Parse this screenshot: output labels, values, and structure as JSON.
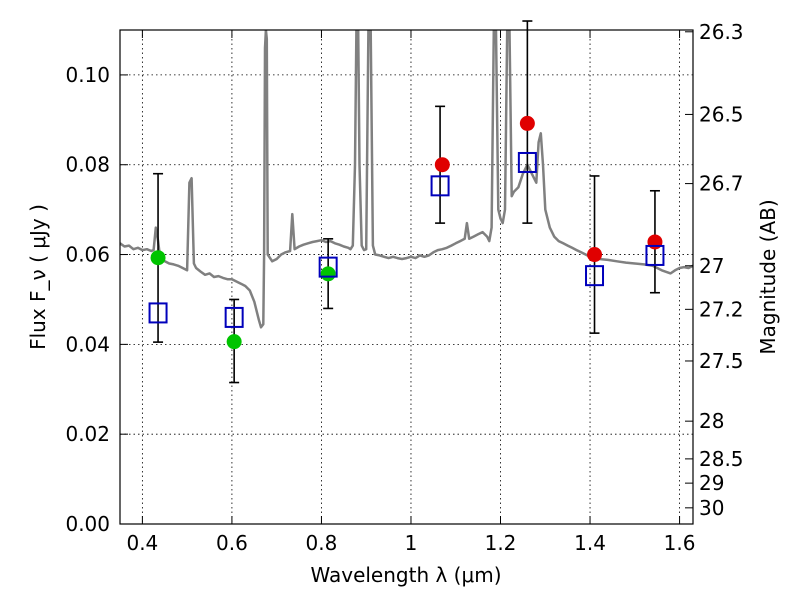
{
  "chart_data": {
    "type": "scatter",
    "title": "",
    "xlabel": "Wavelength λ (μm)",
    "ylabel": "Flux F_ν ( μJy )",
    "ylabel_right": "Magnitude (AB)",
    "xlim": [
      0.35,
      1.63
    ],
    "ylim": [
      0.0,
      0.11
    ],
    "grid": true,
    "x_ticks": [
      0.4,
      0.6,
      0.8,
      1.0,
      1.2,
      1.4,
      1.6
    ],
    "x_tick_labels": [
      "0.4",
      "0.6",
      "0.8",
      "1",
      "1.2",
      "1.4",
      "1.6"
    ],
    "y_ticks": [
      0.0,
      0.02,
      0.04,
      0.06,
      0.08,
      0.1
    ],
    "y_tick_labels": [
      "0.00",
      "0.02",
      "0.04",
      "0.06",
      "0.08",
      "0.10"
    ],
    "right_ticks": [
      {
        "label": "26.3",
        "flux": 0.1096
      },
      {
        "label": "26.5",
        "flux": 0.0912
      },
      {
        "label": "26.7",
        "flux": 0.0758
      },
      {
        "label": "27",
        "flux": 0.0575
      },
      {
        "label": "27.2",
        "flux": 0.0478
      },
      {
        "label": "27.5",
        "flux": 0.0363
      },
      {
        "label": "28",
        "flux": 0.0229
      },
      {
        "label": "28.5",
        "flux": 0.0145
      },
      {
        "label": "29",
        "flux": 0.0091
      },
      {
        "label": "30",
        "flux": 0.0036
      }
    ],
    "series": [
      {
        "name": "model spectrum",
        "kind": "line",
        "color": "#808080",
        "points": [
          [
            0.35,
            0.0625
          ],
          [
            0.36,
            0.0618
          ],
          [
            0.37,
            0.062
          ],
          [
            0.38,
            0.0612
          ],
          [
            0.39,
            0.0615
          ],
          [
            0.4,
            0.061
          ],
          [
            0.41,
            0.0612
          ],
          [
            0.42,
            0.0608
          ],
          [
            0.425,
            0.061
          ],
          [
            0.43,
            0.066
          ],
          [
            0.435,
            0.063
          ],
          [
            0.44,
            0.059
          ],
          [
            0.45,
            0.0585
          ],
          [
            0.46,
            0.058
          ],
          [
            0.47,
            0.0578
          ],
          [
            0.48,
            0.0575
          ],
          [
            0.49,
            0.057
          ],
          [
            0.5,
            0.0565
          ],
          [
            0.505,
            0.076
          ],
          [
            0.51,
            0.077
          ],
          [
            0.515,
            0.058
          ],
          [
            0.52,
            0.057
          ],
          [
            0.53,
            0.0562
          ],
          [
            0.54,
            0.0555
          ],
          [
            0.55,
            0.0558
          ],
          [
            0.56,
            0.055
          ],
          [
            0.57,
            0.0552
          ],
          [
            0.58,
            0.0548
          ],
          [
            0.59,
            0.0545
          ],
          [
            0.6,
            0.0545
          ],
          [
            0.61,
            0.054
          ],
          [
            0.62,
            0.0535
          ],
          [
            0.63,
            0.053
          ],
          [
            0.64,
            0.052
          ],
          [
            0.65,
            0.0495
          ],
          [
            0.66,
            0.0455
          ],
          [
            0.665,
            0.0438
          ],
          [
            0.67,
            0.0445
          ],
          [
            0.672,
            0.06
          ],
          [
            0.674,
            0.106
          ],
          [
            0.676,
            0.11
          ],
          [
            0.678,
            0.108
          ],
          [
            0.68,
            0.06
          ],
          [
            0.69,
            0.0585
          ],
          [
            0.7,
            0.059
          ],
          [
            0.71,
            0.06
          ],
          [
            0.72,
            0.0605
          ],
          [
            0.73,
            0.0608
          ],
          [
            0.735,
            0.069
          ],
          [
            0.74,
            0.0612
          ],
          [
            0.75,
            0.0618
          ],
          [
            0.76,
            0.0622
          ],
          [
            0.77,
            0.0625
          ],
          [
            0.78,
            0.0628
          ],
          [
            0.79,
            0.063
          ],
          [
            0.8,
            0.0632
          ],
          [
            0.81,
            0.0628
          ],
          [
            0.82,
            0.063
          ],
          [
            0.83,
            0.0625
          ],
          [
            0.84,
            0.0622
          ],
          [
            0.85,
            0.0618
          ],
          [
            0.86,
            0.0615
          ],
          [
            0.865,
            0.0612
          ],
          [
            0.87,
            0.062
          ],
          [
            0.875,
            0.08
          ],
          [
            0.878,
            0.11
          ],
          [
            0.882,
            0.11
          ],
          [
            0.885,
            0.08
          ],
          [
            0.89,
            0.062
          ],
          [
            0.895,
            0.061
          ],
          [
            0.9,
            0.0612
          ],
          [
            0.905,
            0.11
          ],
          [
            0.91,
            0.11
          ],
          [
            0.915,
            0.062
          ],
          [
            0.92,
            0.06
          ],
          [
            0.93,
            0.0598
          ],
          [
            0.94,
            0.0595
          ],
          [
            0.95,
            0.0592
          ],
          [
            0.96,
            0.0595
          ],
          [
            0.97,
            0.0592
          ],
          [
            0.98,
            0.059
          ],
          [
            0.99,
            0.0592
          ],
          [
            1.0,
            0.0595
          ],
          [
            1.01,
            0.0592
          ],
          [
            1.02,
            0.0598
          ],
          [
            1.03,
            0.0595
          ],
          [
            1.04,
            0.0598
          ],
          [
            1.05,
            0.0605
          ],
          [
            1.06,
            0.061
          ],
          [
            1.07,
            0.0612
          ],
          [
            1.08,
            0.0615
          ],
          [
            1.09,
            0.062
          ],
          [
            1.1,
            0.0625
          ],
          [
            1.11,
            0.063
          ],
          [
            1.12,
            0.0635
          ],
          [
            1.125,
            0.067
          ],
          [
            1.13,
            0.0635
          ],
          [
            1.14,
            0.064
          ],
          [
            1.15,
            0.0645
          ],
          [
            1.16,
            0.065
          ],
          [
            1.17,
            0.064
          ],
          [
            1.175,
            0.063
          ],
          [
            1.18,
            0.066
          ],
          [
            1.185,
            0.11
          ],
          [
            1.19,
            0.11
          ],
          [
            1.195,
            0.07
          ],
          [
            1.2,
            0.068
          ],
          [
            1.205,
            0.067
          ],
          [
            1.21,
            0.07
          ],
          [
            1.215,
            0.11
          ],
          [
            1.22,
            0.11
          ],
          [
            1.225,
            0.073
          ],
          [
            1.23,
            0.074
          ],
          [
            1.24,
            0.075
          ],
          [
            1.25,
            0.078
          ],
          [
            1.26,
            0.08
          ],
          [
            1.27,
            0.078
          ],
          [
            1.28,
            0.076
          ],
          [
            1.285,
            0.085
          ],
          [
            1.29,
            0.087
          ],
          [
            1.295,
            0.08
          ],
          [
            1.3,
            0.07
          ],
          [
            1.31,
            0.066
          ],
          [
            1.32,
            0.064
          ],
          [
            1.33,
            0.063
          ],
          [
            1.34,
            0.0625
          ],
          [
            1.35,
            0.062
          ],
          [
            1.36,
            0.0615
          ],
          [
            1.37,
            0.061
          ],
          [
            1.38,
            0.0605
          ],
          [
            1.39,
            0.06
          ],
          [
            1.4,
            0.0595
          ],
          [
            1.42,
            0.059
          ],
          [
            1.44,
            0.0588
          ],
          [
            1.46,
            0.0585
          ],
          [
            1.48,
            0.0582
          ],
          [
            1.5,
            0.058
          ],
          [
            1.52,
            0.0578
          ],
          [
            1.54,
            0.0575
          ],
          [
            1.56,
            0.0565
          ],
          [
            1.58,
            0.0558
          ],
          [
            1.59,
            0.0565
          ],
          [
            1.6,
            0.057
          ],
          [
            1.61,
            0.0572
          ],
          [
            1.62,
            0.057
          ],
          [
            1.63,
            0.0575
          ]
        ]
      },
      {
        "name": "observed (green)",
        "kind": "points",
        "marker": "circle",
        "color": "#00c400",
        "points": [
          [
            0.435,
            0.0593
          ],
          [
            0.605,
            0.0406
          ],
          [
            0.815,
            0.0557
          ]
        ],
        "errors": [
          null,
          null,
          null
        ]
      },
      {
        "name": "observed (red)",
        "kind": "points",
        "marker": "circle",
        "color": "#e00000",
        "points": [
          [
            1.07,
            0.08
          ],
          [
            1.26,
            0.0892
          ],
          [
            1.41,
            0.06
          ],
          [
            1.545,
            0.0628
          ]
        ],
        "errors": [
          null,
          null,
          null,
          null
        ]
      },
      {
        "name": "model photometry",
        "kind": "points",
        "marker": "open-square",
        "color": "#0000bb",
        "points": [
          [
            0.435,
            0.047
          ],
          [
            0.605,
            0.046
          ],
          [
            0.815,
            0.0572
          ],
          [
            1.065,
            0.0753
          ],
          [
            1.26,
            0.0805
          ],
          [
            1.41,
            0.0553
          ],
          [
            1.545,
            0.0598
          ]
        ],
        "errors": [
          [
            0.0405,
            0.078
          ],
          [
            0.0315,
            0.05
          ],
          [
            0.048,
            0.0635
          ],
          [
            0.067,
            0.093
          ],
          [
            0.067,
            0.112
          ],
          [
            0.0425,
            0.0775
          ],
          [
            0.0515,
            0.0742
          ]
        ]
      }
    ]
  }
}
